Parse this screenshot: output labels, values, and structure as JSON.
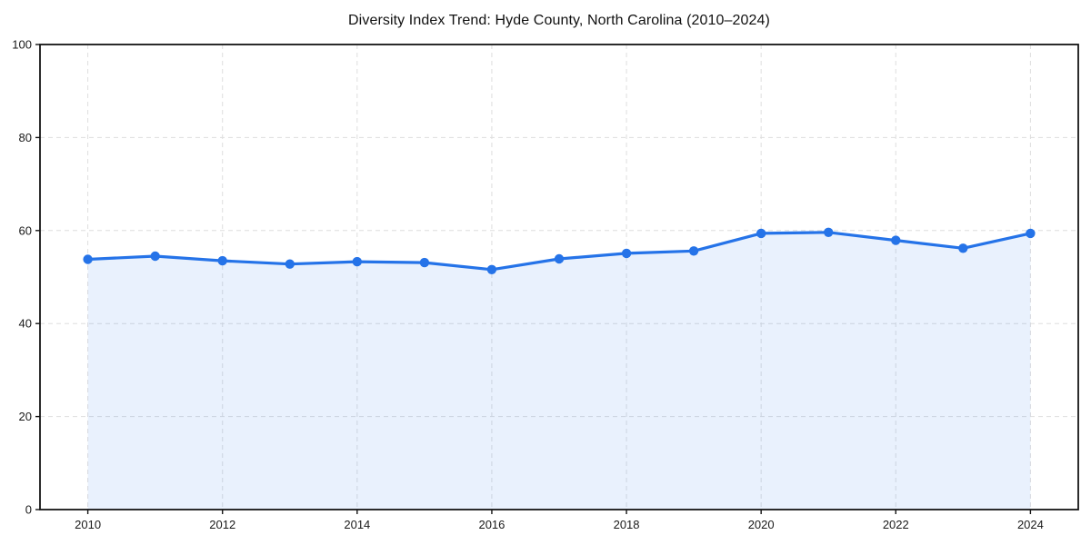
{
  "chart_data": {
    "type": "area",
    "title": "Diversity Index Trend: Hyde County, North Carolina (2010–2024)",
    "series_name": "Diversity Index",
    "x": [
      2010,
      2011,
      2012,
      2013,
      2014,
      2015,
      2016,
      2017,
      2018,
      2019,
      2020,
      2021,
      2022,
      2023,
      2024
    ],
    "values": [
      53.8,
      54.5,
      53.5,
      52.8,
      53.3,
      53.1,
      51.6,
      53.9,
      55.1,
      55.6,
      59.4,
      59.6,
      57.9,
      56.2,
      59.4
    ],
    "xlabel": "",
    "ylabel": "",
    "ylim": [
      0,
      100
    ],
    "yticks": [
      0,
      20,
      40,
      60,
      80,
      100
    ],
    "xticks": [
      2010,
      2012,
      2014,
      2016,
      2018,
      2020,
      2022,
      2024
    ],
    "grid": "dashed",
    "legend": "none",
    "colors": {
      "line": "#2573e8",
      "fill": "#2573e8",
      "fill_opacity": 0.1,
      "grid": "#dedede",
      "axis": "#141414",
      "tick_label": "#1a1a1a",
      "title": "#111111",
      "background": "#ffffff"
    }
  }
}
